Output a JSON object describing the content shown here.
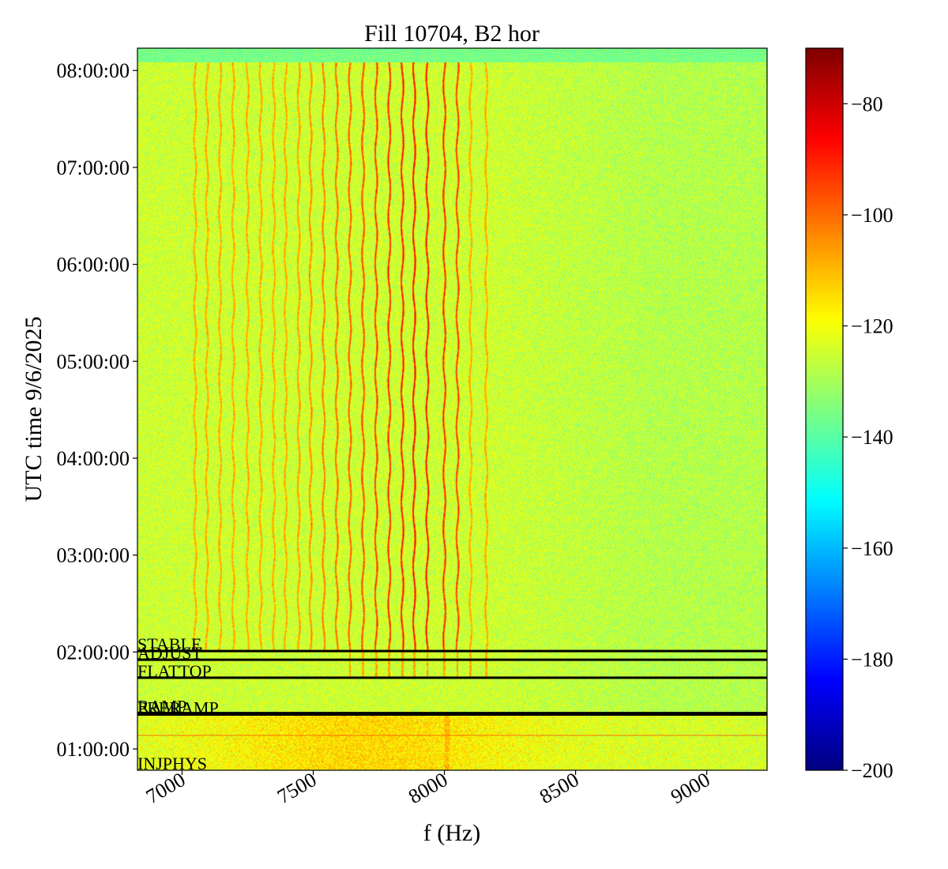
{
  "chart_data": {
    "type": "heatmap",
    "title": "Fill 10704, B2 hor",
    "xlabel": "f (Hz)",
    "ylabel": "UTC time 9/6/2025",
    "xlim": [
      6830,
      9230
    ],
    "ylim_hours": [
      0.78,
      8.23
    ],
    "x_ticks": [
      {
        "value": 7000,
        "label": "7000"
      },
      {
        "value": 7500,
        "label": "7500"
      },
      {
        "value": 8000,
        "label": "8000"
      },
      {
        "value": 8500,
        "label": "8500"
      },
      {
        "value": 9000,
        "label": "9000"
      }
    ],
    "y_ticks": [
      {
        "value": 1,
        "label": "01:00:00"
      },
      {
        "value": 2,
        "label": "02:00:00"
      },
      {
        "value": 3,
        "label": "03:00:00"
      },
      {
        "value": 4,
        "label": "04:00:00"
      },
      {
        "value": 5,
        "label": "05:00:00"
      },
      {
        "value": 6,
        "label": "06:00:00"
      },
      {
        "value": 7,
        "label": "07:00:00"
      },
      {
        "value": 8,
        "label": "08:00:00"
      }
    ],
    "colorbar": {
      "colormap": "jet",
      "vmin": -200,
      "vmax": -70,
      "ticks": [
        {
          "value": -80,
          "label": "−80"
        },
        {
          "value": -100,
          "label": "−100"
        },
        {
          "value": -120,
          "label": "−120"
        },
        {
          "value": -140,
          "label": "−140"
        },
        {
          "value": -160,
          "label": "−160"
        },
        {
          "value": -180,
          "label": "−180"
        },
        {
          "value": -200,
          "label": "−200"
        }
      ]
    },
    "background_level": -125,
    "beam_modes": [
      {
        "name": "INJPHYS",
        "hour": 0.78
      },
      {
        "name": "PRERAMP",
        "hour": 1.355
      },
      {
        "name": "RAMP",
        "hour": 1.37
      },
      {
        "name": "FLATTOP",
        "hour": 1.735
      },
      {
        "name": "ADJUST",
        "hour": 1.92
      },
      {
        "name": "STABLE",
        "hour": 2.01
      }
    ],
    "tune_lines_hz": [
      7050,
      7095,
      7145,
      7195,
      7250,
      7300,
      7350,
      7395,
      7445,
      7490,
      7540,
      7590,
      7640,
      7690,
      7740,
      7790,
      7840,
      7885,
      7935,
      8000,
      8050,
      8100,
      8160
    ],
    "injection_noise_hours": [
      0.78,
      1.37
    ],
    "beam_end_hour": 8.08
  }
}
